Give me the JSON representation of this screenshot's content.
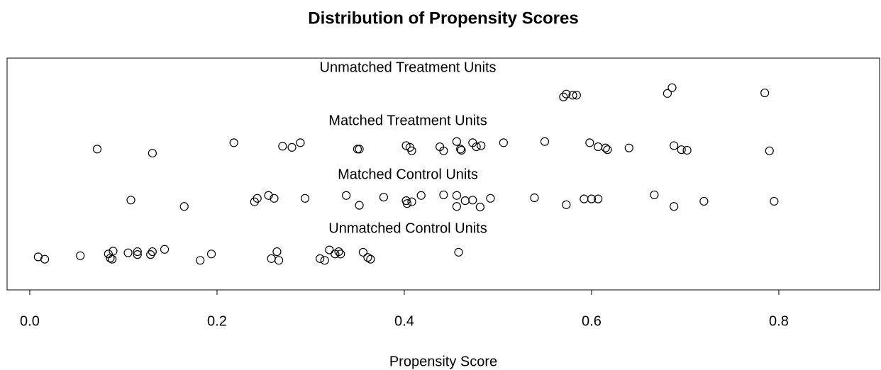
{
  "chart_data": {
    "type": "scatter",
    "title": "Distribution of Propensity Scores",
    "x_label": "Propensity Score",
    "xlim": [
      -0.0242,
      0.9076
    ],
    "ylim": [
      0.5,
      4.5
    ],
    "xticks": [
      {
        "value": 0,
        "label": "0.0"
      },
      0.2,
      0.4,
      0.6,
      0.8
    ],
    "series": [
      {
        "name": "Unmatched Treatment Units",
        "color": "#000000",
        "x": [
          0.57,
          0.573,
          0.58,
          0.584,
          0.681,
          0.686,
          0.785
        ],
        "y": [
          3.83,
          3.88,
          3.86,
          3.86,
          3.89,
          3.99,
          3.9
        ]
      },
      {
        "name": "Matched Treatment Units",
        "color": "#000000",
        "x": [
          0.072,
          0.131,
          0.218,
          0.27,
          0.28,
          0.289,
          0.35,
          0.352,
          0.402,
          0.406,
          0.408,
          0.438,
          0.442,
          0.456,
          0.46,
          0.461,
          0.473,
          0.477,
          0.482,
          0.506,
          0.55,
          0.598,
          0.607,
          0.615,
          0.617,
          0.64,
          0.688,
          0.696,
          0.702,
          0.79
        ],
        "y": [
          2.93,
          2.86,
          3.04,
          2.98,
          2.96,
          3.04,
          2.93,
          2.93,
          2.99,
          2.96,
          2.9,
          2.97,
          2.9,
          3.06,
          2.93,
          2.91,
          3.04,
          2.97,
          2.99,
          3.04,
          3.06,
          3.04,
          2.97,
          2.95,
          2.92,
          2.95,
          2.99,
          2.92,
          2.91,
          2.9
        ]
      },
      {
        "name": "Matched Control Units",
        "color": "#000000",
        "x": [
          0.108,
          0.165,
          0.24,
          0.243,
          0.255,
          0.261,
          0.294,
          0.338,
          0.352,
          0.378,
          0.402,
          0.403,
          0.408,
          0.418,
          0.442,
          0.456,
          0.456,
          0.465,
          0.473,
          0.481,
          0.492,
          0.539,
          0.573,
          0.592,
          0.6,
          0.607,
          0.667,
          0.688,
          0.72,
          0.795
        ],
        "y": [
          2.05,
          1.94,
          2.02,
          2.08,
          2.13,
          2.08,
          2.08,
          2.13,
          1.96,
          2.1,
          2.04,
          1.99,
          2.02,
          2.13,
          2.14,
          2.13,
          1.94,
          2.04,
          2.05,
          1.93,
          2.08,
          2.09,
          1.97,
          2.07,
          2.07,
          2.07,
          2.14,
          1.94,
          2.03,
          2.03
        ]
      },
      {
        "name": "Unmatched Control Units",
        "color": "#000000",
        "x": [
          0.009,
          0.016,
          0.054,
          0.084,
          0.086,
          0.088,
          0.089,
          0.105,
          0.115,
          0.115,
          0.129,
          0.131,
          0.144,
          0.182,
          0.194,
          0.258,
          0.264,
          0.266,
          0.31,
          0.315,
          0.32,
          0.326,
          0.332,
          0.33,
          0.356,
          0.361,
          0.364,
          0.458
        ],
        "y": [
          1.07,
          1.03,
          1.09,
          1.12,
          1.05,
          1.03,
          1.17,
          1.14,
          1.16,
          1.11,
          1.11,
          1.16,
          1.2,
          1.01,
          1.12,
          1.04,
          1.16,
          1.01,
          1.04,
          1.01,
          1.19,
          1.12,
          1.12,
          1.16,
          1.15,
          1.06,
          1.03,
          1.15
        ]
      }
    ]
  }
}
